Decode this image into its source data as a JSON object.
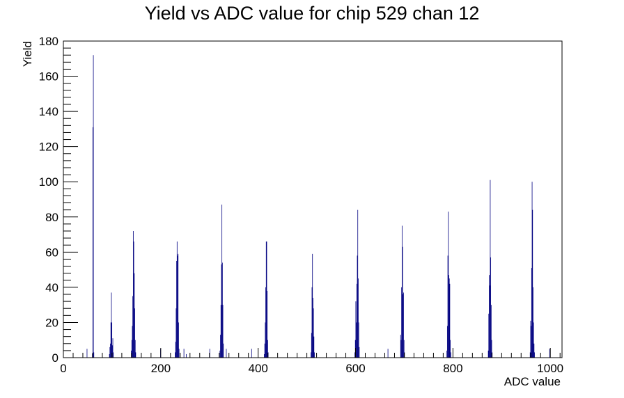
{
  "chart_data": {
    "type": "bar",
    "title": "Yield vs ADC value for chip 529 chan 12",
    "xlabel": "ADC value",
    "ylabel": "Yield",
    "xlim": [
      0,
      1024
    ],
    "ylim": [
      0,
      180
    ],
    "x_ticks": [
      0,
      200,
      400,
      600,
      800,
      1000
    ],
    "y_ticks": [
      0,
      20,
      40,
      60,
      80,
      100,
      120,
      140,
      160,
      180
    ],
    "bin_width": 1,
    "grid": false,
    "legend": "none",
    "color": "#000080",
    "bins": [
      {
        "x": 48,
        "y": 5
      },
      {
        "x": 59,
        "y": 2
      },
      {
        "x": 60,
        "y": 131
      },
      {
        "x": 61,
        "y": 172
      },
      {
        "x": 62,
        "y": 3
      },
      {
        "x": 94,
        "y": 2
      },
      {
        "x": 95,
        "y": 6
      },
      {
        "x": 96,
        "y": 8
      },
      {
        "x": 97,
        "y": 20
      },
      {
        "x": 98,
        "y": 37
      },
      {
        "x": 99,
        "y": 20
      },
      {
        "x": 100,
        "y": 7
      },
      {
        "x": 101,
        "y": 11
      },
      {
        "x": 102,
        "y": 3
      },
      {
        "x": 139,
        "y": 4
      },
      {
        "x": 140,
        "y": 10
      },
      {
        "x": 141,
        "y": 18
      },
      {
        "x": 142,
        "y": 35
      },
      {
        "x": 143,
        "y": 72
      },
      {
        "x": 144,
        "y": 66
      },
      {
        "x": 145,
        "y": 48
      },
      {
        "x": 146,
        "y": 28
      },
      {
        "x": 147,
        "y": 10
      },
      {
        "x": 148,
        "y": 3
      },
      {
        "x": 199,
        "y": 5
      },
      {
        "x": 229,
        "y": 3
      },
      {
        "x": 230,
        "y": 9
      },
      {
        "x": 231,
        "y": 28
      },
      {
        "x": 232,
        "y": 55
      },
      {
        "x": 233,
        "y": 66
      },
      {
        "x": 234,
        "y": 58
      },
      {
        "x": 235,
        "y": 59
      },
      {
        "x": 236,
        "y": 20
      },
      {
        "x": 237,
        "y": 5
      },
      {
        "x": 247,
        "y": 5
      },
      {
        "x": 252,
        "y": 2
      },
      {
        "x": 300,
        "y": 5
      },
      {
        "x": 321,
        "y": 4
      },
      {
        "x": 322,
        "y": 13
      },
      {
        "x": 323,
        "y": 30
      },
      {
        "x": 324,
        "y": 53
      },
      {
        "x": 325,
        "y": 87
      },
      {
        "x": 326,
        "y": 54
      },
      {
        "x": 327,
        "y": 30
      },
      {
        "x": 328,
        "y": 8
      },
      {
        "x": 334,
        "y": 5
      },
      {
        "x": 386,
        "y": 5
      },
      {
        "x": 412,
        "y": 2
      },
      {
        "x": 413,
        "y": 8
      },
      {
        "x": 414,
        "y": 20
      },
      {
        "x": 415,
        "y": 40
      },
      {
        "x": 416,
        "y": 66
      },
      {
        "x": 417,
        "y": 66
      },
      {
        "x": 418,
        "y": 38
      },
      {
        "x": 419,
        "y": 10
      },
      {
        "x": 420,
        "y": 3
      },
      {
        "x": 508,
        "y": 3
      },
      {
        "x": 509,
        "y": 14
      },
      {
        "x": 510,
        "y": 40
      },
      {
        "x": 511,
        "y": 59
      },
      {
        "x": 512,
        "y": 34
      },
      {
        "x": 513,
        "y": 28
      },
      {
        "x": 514,
        "y": 12
      },
      {
        "x": 515,
        "y": 3
      },
      {
        "x": 598,
        "y": 3
      },
      {
        "x": 599,
        "y": 10
      },
      {
        "x": 600,
        "y": 32
      },
      {
        "x": 601,
        "y": 20
      },
      {
        "x": 602,
        "y": 42
      },
      {
        "x": 603,
        "y": 58
      },
      {
        "x": 604,
        "y": 84
      },
      {
        "x": 605,
        "y": 45
      },
      {
        "x": 606,
        "y": 20
      },
      {
        "x": 607,
        "y": 6
      },
      {
        "x": 666,
        "y": 5
      },
      {
        "x": 692,
        "y": 13
      },
      {
        "x": 693,
        "y": 10
      },
      {
        "x": 694,
        "y": 40
      },
      {
        "x": 695,
        "y": 75
      },
      {
        "x": 696,
        "y": 63
      },
      {
        "x": 697,
        "y": 36
      },
      {
        "x": 698,
        "y": 37
      },
      {
        "x": 699,
        "y": 10
      },
      {
        "x": 700,
        "y": 3
      },
      {
        "x": 787,
        "y": 4
      },
      {
        "x": 788,
        "y": 18
      },
      {
        "x": 789,
        "y": 58
      },
      {
        "x": 790,
        "y": 83
      },
      {
        "x": 791,
        "y": 47
      },
      {
        "x": 792,
        "y": 45
      },
      {
        "x": 793,
        "y": 42
      },
      {
        "x": 794,
        "y": 10
      },
      {
        "x": 795,
        "y": 3
      },
      {
        "x": 872,
        "y": 4
      },
      {
        "x": 873,
        "y": 25
      },
      {
        "x": 874,
        "y": 47
      },
      {
        "x": 875,
        "y": 41
      },
      {
        "x": 876,
        "y": 101
      },
      {
        "x": 877,
        "y": 57
      },
      {
        "x": 878,
        "y": 30
      },
      {
        "x": 879,
        "y": 10
      },
      {
        "x": 880,
        "y": 3
      },
      {
        "x": 958,
        "y": 3
      },
      {
        "x": 959,
        "y": 21
      },
      {
        "x": 960,
        "y": 18
      },
      {
        "x": 961,
        "y": 51
      },
      {
        "x": 962,
        "y": 100
      },
      {
        "x": 963,
        "y": 84
      },
      {
        "x": 964,
        "y": 40
      },
      {
        "x": 965,
        "y": 20
      },
      {
        "x": 966,
        "y": 8
      },
      {
        "x": 967,
        "y": 3
      },
      {
        "x": 998,
        "y": 5
      }
    ]
  }
}
